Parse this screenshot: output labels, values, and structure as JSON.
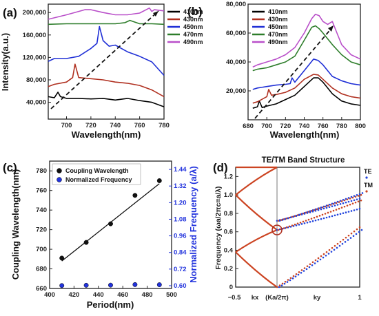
{
  "chart_data": [
    {
      "panel": "(a)",
      "type": "line",
      "xlabel": "Wavelength(nm)",
      "ylabel": "Intensity(a.u.)",
      "xlim": [
        685,
        780
      ],
      "ylim": [
        10000,
        215000
      ],
      "xticks": [
        700,
        720,
        740,
        760,
        780
      ],
      "yticks": [
        40000,
        80000,
        120000,
        160000,
        200000
      ],
      "ytick_labels": [
        "40,000",
        "80,000",
        "120,000",
        "160,000",
        "200,000"
      ],
      "legend": "top-right",
      "series": [
        {
          "name": "410nm",
          "color": "#000000",
          "x": [
            685,
            690,
            693,
            695,
            700,
            710,
            720,
            730,
            740,
            750,
            760,
            770,
            780
          ],
          "y": [
            50000,
            48000,
            58000,
            50000,
            47000,
            47000,
            46000,
            47000,
            44000,
            47000,
            43000,
            40000,
            32000
          ]
        },
        {
          "name": "430nm",
          "color": "#b03020",
          "x": [
            685,
            690,
            700,
            705,
            707,
            710,
            720,
            730,
            740,
            750,
            760,
            770,
            780
          ],
          "y": [
            68000,
            72000,
            76000,
            84000,
            108000,
            84000,
            82000,
            80000,
            76000,
            74000,
            70000,
            62000,
            50000
          ]
        },
        {
          "name": "450nm",
          "color": "#1f2fd6",
          "x": [
            685,
            690,
            700,
            710,
            720,
            725,
            727,
            730,
            735,
            740,
            750,
            760,
            770,
            780
          ],
          "y": [
            113000,
            118000,
            118000,
            122000,
            136000,
            145000,
            175000,
            150000,
            140000,
            142000,
            130000,
            122000,
            112000,
            88000
          ]
        },
        {
          "name": "470nm",
          "color": "#2d7d2a",
          "x": [
            685,
            700,
            720,
            740,
            748,
            752,
            760,
            770,
            780
          ],
          "y": [
            179000,
            180000,
            180000,
            180000,
            182000,
            186000,
            180000,
            180000,
            179000
          ]
        },
        {
          "name": "490nm",
          "color": "#b94fc9",
          "x": [
            685,
            700,
            710,
            715,
            720,
            730,
            740,
            750,
            760,
            768,
            770,
            772,
            780
          ],
          "y": [
            188000,
            196000,
            202000,
            205000,
            205000,
            200000,
            196000,
            196000,
            199000,
            208000,
            202000,
            205000,
            203000
          ]
        }
      ]
    },
    {
      "panel": "(b)",
      "type": "line",
      "xlabel": "Wavelength(nm)",
      "ylabel": "",
      "xlim": [
        680,
        800
      ],
      "ylim": [
        0,
        80000
      ],
      "xticks": [
        680,
        700,
        720,
        740,
        760,
        780,
        800
      ],
      "yticks": [
        20000,
        40000,
        60000,
        80000
      ],
      "ytick_labels": [
        "20,000",
        "40,000",
        "60,000",
        "80,000"
      ],
      "legend": "top-left",
      "series": [
        {
          "name": "410nm",
          "color": "#000000",
          "x": [
            685,
            690,
            692,
            695,
            700,
            710,
            720,
            730,
            740,
            750,
            755,
            760,
            770,
            780,
            790,
            800
          ],
          "y": [
            8000,
            9000,
            13000,
            8500,
            9500,
            11000,
            14000,
            17000,
            23000,
            29000,
            29000,
            26000,
            18000,
            13000,
            11000,
            10000
          ]
        },
        {
          "name": "430nm",
          "color": "#b03020",
          "x": [
            685,
            690,
            700,
            702,
            705,
            710,
            720,
            730,
            740,
            750,
            755,
            760,
            770,
            780,
            790,
            800
          ],
          "y": [
            11500,
            12500,
            16000,
            21000,
            17000,
            17500,
            19000,
            22000,
            28000,
            31500,
            31000,
            28000,
            22000,
            18000,
            16000,
            15000
          ]
        },
        {
          "name": "450nm",
          "color": "#1f2fd6",
          "x": [
            685,
            690,
            700,
            710,
            720,
            725,
            727,
            730,
            740,
            750,
            755,
            760,
            770,
            780,
            790,
            800
          ],
          "y": [
            21000,
            22000,
            23000,
            24000,
            24500,
            25000,
            29000,
            26000,
            34000,
            42000,
            41000,
            38000,
            30000,
            27000,
            25000,
            24000
          ]
        },
        {
          "name": "470nm",
          "color": "#2d7d2a",
          "x": [
            685,
            690,
            700,
            710,
            720,
            730,
            740,
            748,
            752,
            756,
            760,
            765,
            770,
            780,
            790,
            800
          ],
          "y": [
            34000,
            35000,
            36000,
            38000,
            40000,
            44000,
            55000,
            64000,
            65000,
            63000,
            60000,
            56000,
            52000,
            45000,
            40000,
            38000
          ]
        },
        {
          "name": "490nm",
          "color": "#b94fc9",
          "x": [
            685,
            690,
            700,
            710,
            720,
            730,
            740,
            748,
            752,
            756,
            760,
            765,
            770,
            775,
            780,
            790,
            800
          ],
          "y": [
            36500,
            38000,
            40000,
            42000,
            45000,
            50000,
            60000,
            70000,
            73000,
            72000,
            68000,
            66000,
            68000,
            60000,
            52000,
            45000,
            42000
          ]
        }
      ]
    },
    {
      "panel": "(c)",
      "type": "scatter",
      "xlabel": "Period(nm)",
      "ylabel": "Coupling Wavelength(nm)",
      "ylabel_right": "Normalized Frequency (a/λ)",
      "xlim": [
        400,
        500
      ],
      "ylim": [
        660,
        790
      ],
      "ylim_right": [
        0.58,
        1.5
      ],
      "xticks": [
        400,
        420,
        440,
        460,
        480,
        500
      ],
      "yticks": [
        660,
        680,
        700,
        720,
        740,
        760,
        780
      ],
      "yticks_right": [
        "0.60",
        "0.72",
        "0.84",
        "0.96",
        "1.08",
        "1.20",
        "1.32",
        "1.44"
      ],
      "legend": "top-left",
      "series": [
        {
          "name": "Coupling Wavelength",
          "color": "#111111",
          "axis": "left",
          "x": [
            410,
            430,
            450,
            470,
            490
          ],
          "y": [
            691,
            707,
            726,
            755,
            770
          ]
        },
        {
          "name": "Normalized Frequency",
          "color": "#2233dd",
          "axis": "right",
          "x": [
            410,
            430,
            450,
            470,
            490
          ],
          "y": [
            0.601,
            0.603,
            0.604,
            0.608,
            0.607
          ]
        }
      ],
      "fit_line": {
        "x": [
          410,
          490
        ],
        "y": [
          688,
          767
        ]
      }
    },
    {
      "panel": "(d)",
      "type": "scatter",
      "title": "TE/TM Band Structure",
      "ylabel": "Frequency (ωa/2πc=a/λ)",
      "xlim": [
        -0.5,
        1
      ],
      "ylim": [
        0,
        1.3
      ],
      "xtick_labels": [
        "−0.5",
        "kx",
        "(Ka/2π)",
        "ky",
        "1"
      ],
      "yticks": [
        "0",
        "0.2",
        "0.4",
        "0.6",
        "0.8",
        "1.0",
        "1.2"
      ],
      "legend_labels": [
        "TE",
        "TM"
      ],
      "legend_colors": [
        "#2244dd",
        "#cc4422"
      ],
      "highlight": {
        "x": 0,
        "y": 0.62
      }
    }
  ]
}
